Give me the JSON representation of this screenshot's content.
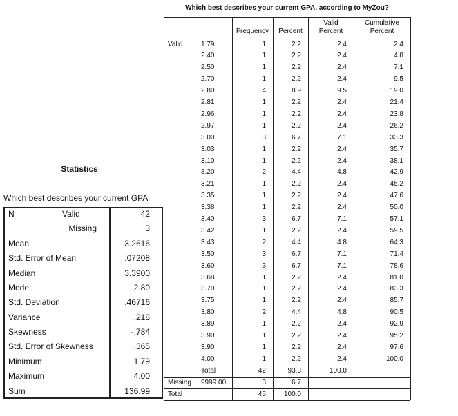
{
  "statistics": {
    "title": "Statistics",
    "subtitle": "Which best describes your current GPA",
    "rows": [
      {
        "label": "N",
        "sublabel": "Valid",
        "value": "42"
      },
      {
        "sublabel": "Missing",
        "value": "3"
      },
      {
        "label": "Mean",
        "value": "3.2616"
      },
      {
        "label": "Std. Error of Mean",
        "value": ".07208"
      },
      {
        "label": "Median",
        "value": "3.3900"
      },
      {
        "label": "Mode",
        "value": "2.80"
      },
      {
        "label": "Std. Deviation",
        "value": ".46716"
      },
      {
        "label": "Variance",
        "value": ".218"
      },
      {
        "label": "Skewness",
        "value": "-.784"
      },
      {
        "label": "Std. Error of Skewness",
        "value": ".365"
      },
      {
        "label": "Minimum",
        "value": "1.79"
      },
      {
        "label": "Maximum",
        "value": "4.00"
      },
      {
        "label": "Sum",
        "value": "136.99"
      }
    ]
  },
  "frequency_table": {
    "title": "Which best describes your current GPA, according to MyZou?",
    "headers": {
      "frequency": "Frequency",
      "percent": "Percent",
      "valid_percent": "Valid Percent",
      "cumulative_percent": "Cumulative Percent"
    },
    "groups": [
      {
        "label": "Valid",
        "rows": [
          {
            "value": "1.79",
            "frequency": "1",
            "percent": "2.2",
            "valid_percent": "2.4",
            "cumulative_percent": "2.4"
          },
          {
            "value": "2.40",
            "frequency": "1",
            "percent": "2.2",
            "valid_percent": "2.4",
            "cumulative_percent": "4.8"
          },
          {
            "value": "2.50",
            "frequency": "1",
            "percent": "2.2",
            "valid_percent": "2.4",
            "cumulative_percent": "7.1"
          },
          {
            "value": "2.70",
            "frequency": "1",
            "percent": "2.2",
            "valid_percent": "2.4",
            "cumulative_percent": "9.5"
          },
          {
            "value": "2.80",
            "frequency": "4",
            "percent": "8.9",
            "valid_percent": "9.5",
            "cumulative_percent": "19.0"
          },
          {
            "value": "2.81",
            "frequency": "1",
            "percent": "2.2",
            "valid_percent": "2.4",
            "cumulative_percent": "21.4"
          },
          {
            "value": "2.96",
            "frequency": "1",
            "percent": "2.2",
            "valid_percent": "2.4",
            "cumulative_percent": "23.8"
          },
          {
            "value": "2.97",
            "frequency": "1",
            "percent": "2.2",
            "valid_percent": "2.4",
            "cumulative_percent": "26.2"
          },
          {
            "value": "3.00",
            "frequency": "3",
            "percent": "6.7",
            "valid_percent": "7.1",
            "cumulative_percent": "33.3"
          },
          {
            "value": "3.03",
            "frequency": "1",
            "percent": "2.2",
            "valid_percent": "2.4",
            "cumulative_percent": "35.7"
          },
          {
            "value": "3.10",
            "frequency": "1",
            "percent": "2.2",
            "valid_percent": "2.4",
            "cumulative_percent": "38.1"
          },
          {
            "value": "3.20",
            "frequency": "2",
            "percent": "4.4",
            "valid_percent": "4.8",
            "cumulative_percent": "42.9"
          },
          {
            "value": "3.21",
            "frequency": "1",
            "percent": "2.2",
            "valid_percent": "2.4",
            "cumulative_percent": "45.2"
          },
          {
            "value": "3.35",
            "frequency": "1",
            "percent": "2.2",
            "valid_percent": "2.4",
            "cumulative_percent": "47.6"
          },
          {
            "value": "3.38",
            "frequency": "1",
            "percent": "2.2",
            "valid_percent": "2.4",
            "cumulative_percent": "50.0"
          },
          {
            "value": "3.40",
            "frequency": "3",
            "percent": "6.7",
            "valid_percent": "7.1",
            "cumulative_percent": "57.1"
          },
          {
            "value": "3.42",
            "frequency": "1",
            "percent": "2.2",
            "valid_percent": "2.4",
            "cumulative_percent": "59.5"
          },
          {
            "value": "3.43",
            "frequency": "2",
            "percent": "4.4",
            "valid_percent": "4.8",
            "cumulative_percent": "64.3"
          },
          {
            "value": "3.50",
            "frequency": "3",
            "percent": "6.7",
            "valid_percent": "7.1",
            "cumulative_percent": "71.4"
          },
          {
            "value": "3.60",
            "frequency": "3",
            "percent": "6.7",
            "valid_percent": "7.1",
            "cumulative_percent": "78.6"
          },
          {
            "value": "3.68",
            "frequency": "1",
            "percent": "2.2",
            "valid_percent": "2.4",
            "cumulative_percent": "81.0"
          },
          {
            "value": "3.70",
            "frequency": "1",
            "percent": "2.2",
            "valid_percent": "2.4",
            "cumulative_percent": "83.3"
          },
          {
            "value": "3.75",
            "frequency": "1",
            "percent": "2.2",
            "valid_percent": "2.4",
            "cumulative_percent": "85.7"
          },
          {
            "value": "3.80",
            "frequency": "2",
            "percent": "4.4",
            "valid_percent": "4.8",
            "cumulative_percent": "90.5"
          },
          {
            "value": "3.89",
            "frequency": "1",
            "percent": "2.2",
            "valid_percent": "2.4",
            "cumulative_percent": "92.9"
          },
          {
            "value": "3.90",
            "frequency": "1",
            "percent": "2.2",
            "valid_percent": "2.4",
            "cumulative_percent": "95.2"
          },
          {
            "value": "3.90",
            "frequency": "1",
            "percent": "2.2",
            "valid_percent": "2.4",
            "cumulative_percent": "97.6"
          },
          {
            "value": "4.00",
            "frequency": "1",
            "percent": "2.2",
            "valid_percent": "2.4",
            "cumulative_percent": "100.0"
          },
          {
            "value": "Total",
            "frequency": "42",
            "percent": "93.3",
            "valid_percent": "100.0"
          }
        ]
      },
      {
        "label": "Missing",
        "rows": [
          {
            "value": "9999.00",
            "frequency": "3",
            "percent": "6.7"
          }
        ]
      },
      {
        "label": "Total",
        "rows": [
          {
            "frequency": "45",
            "percent": "100.0"
          }
        ]
      }
    ]
  }
}
